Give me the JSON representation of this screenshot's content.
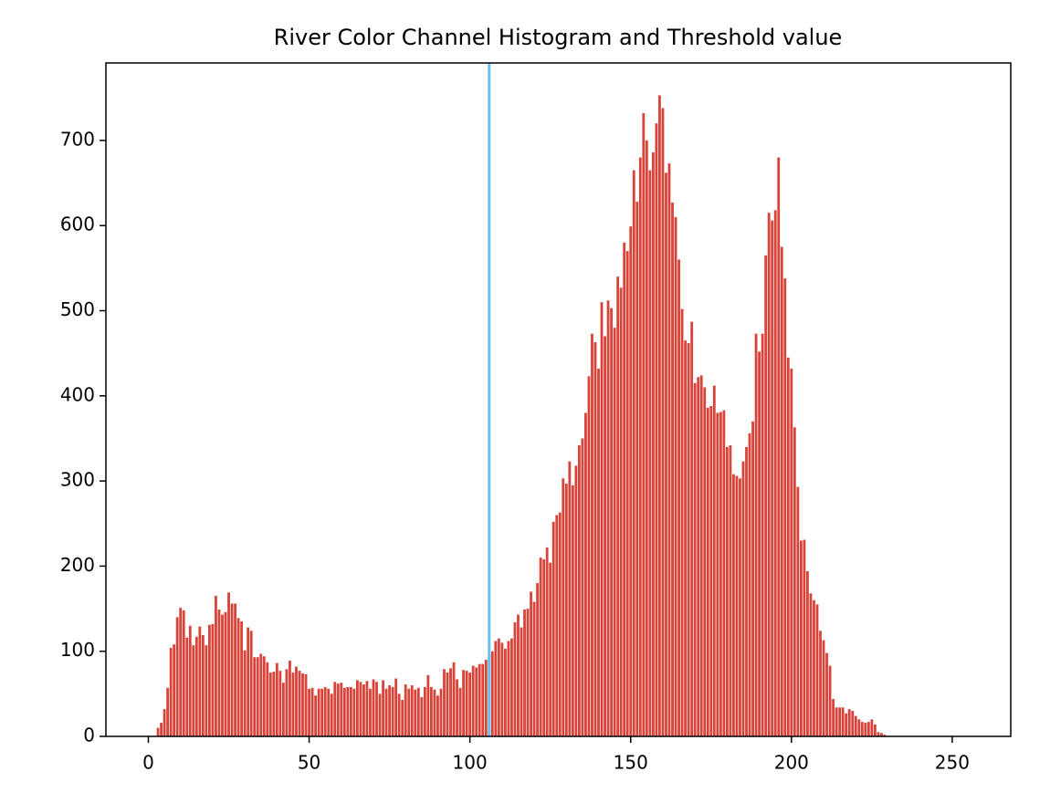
{
  "chart_data": {
    "type": "bar",
    "title": "River Color Channel Histogram and Threshold value",
    "x": [
      0,
      1,
      2,
      3,
      4,
      5,
      6,
      7,
      8,
      9,
      10,
      11,
      12,
      13,
      14,
      15,
      16,
      17,
      18,
      19,
      20,
      21,
      22,
      23,
      24,
      25,
      26,
      27,
      28,
      29,
      30,
      31,
      32,
      33,
      34,
      35,
      36,
      37,
      38,
      39,
      40,
      41,
      42,
      43,
      44,
      45,
      46,
      47,
      48,
      49,
      50,
      51,
      52,
      53,
      54,
      55,
      56,
      57,
      58,
      59,
      60,
      61,
      62,
      63,
      64,
      65,
      66,
      67,
      68,
      69,
      70,
      71,
      72,
      73,
      74,
      75,
      76,
      77,
      78,
      79,
      80,
      81,
      82,
      83,
      84,
      85,
      86,
      87,
      88,
      89,
      90,
      91,
      92,
      93,
      94,
      95,
      96,
      97,
      98,
      99,
      100,
      101,
      102,
      103,
      104,
      105,
      106,
      107,
      108,
      109,
      110,
      111,
      112,
      113,
      114,
      115,
      116,
      117,
      118,
      119,
      120,
      121,
      122,
      123,
      124,
      125,
      126,
      127,
      128,
      129,
      130,
      131,
      132,
      133,
      134,
      135,
      136,
      137,
      138,
      139,
      140,
      141,
      142,
      143,
      144,
      145,
      146,
      147,
      148,
      149,
      150,
      151,
      152,
      153,
      154,
      155,
      156,
      157,
      158,
      159,
      160,
      161,
      162,
      163,
      164,
      165,
      166,
      167,
      168,
      169,
      170,
      171,
      172,
      173,
      174,
      175,
      176,
      177,
      178,
      179,
      180,
      181,
      182,
      183,
      184,
      185,
      186,
      187,
      188,
      189,
      190,
      191,
      192,
      193,
      194,
      195,
      196,
      197,
      198,
      199,
      200,
      201,
      202,
      203,
      204,
      205,
      206,
      207,
      208,
      209,
      210,
      211,
      212,
      213,
      214,
      215,
      216,
      217,
      218,
      219,
      220,
      221,
      222,
      223,
      224,
      225,
      226,
      227,
      228,
      229,
      230,
      231,
      232,
      233,
      234,
      235,
      236,
      237,
      238,
      239,
      240,
      241,
      242,
      243,
      244,
      245,
      246,
      247,
      248,
      249,
      250,
      251,
      252,
      253,
      254,
      255
    ],
    "values": [
      0,
      0,
      0,
      10,
      16,
      32,
      57,
      104,
      108,
      140,
      151,
      148,
      116,
      130,
      107,
      117,
      129,
      119,
      107,
      131,
      132,
      165,
      149,
      143,
      146,
      169,
      156,
      156,
      139,
      135,
      101,
      128,
      124,
      93,
      93,
      97,
      94,
      87,
      75,
      76,
      86,
      77,
      63,
      79,
      89,
      75,
      82,
      77,
      74,
      73,
      56,
      57,
      48,
      56,
      56,
      58,
      56,
      50,
      64,
      62,
      63,
      57,
      58,
      58,
      56,
      66,
      64,
      61,
      65,
      56,
      67,
      64,
      50,
      66,
      56,
      60,
      58,
      68,
      50,
      43,
      61,
      56,
      60,
      55,
      57,
      46,
      58,
      72,
      58,
      55,
      48,
      56,
      79,
      75,
      80,
      87,
      67,
      57,
      78,
      77,
      75,
      83,
      81,
      85,
      85,
      90,
      97,
      100,
      112,
      115,
      110,
      103,
      112,
      115,
      134,
      143,
      128,
      149,
      150,
      170,
      158,
      180,
      210,
      208,
      222,
      204,
      252,
      260,
      263,
      303,
      297,
      323,
      295,
      318,
      342,
      350,
      380,
      423,
      473,
      463,
      432,
      510,
      470,
      512,
      503,
      480,
      540,
      527,
      580,
      570,
      599,
      665,
      628,
      680,
      732,
      700,
      665,
      686,
      720,
      753,
      738,
      662,
      673,
      627,
      610,
      560,
      502,
      465,
      462,
      487,
      415,
      422,
      424,
      410,
      386,
      388,
      412,
      380,
      381,
      383,
      340,
      342,
      308,
      306,
      303,
      323,
      340,
      356,
      370,
      473,
      452,
      473,
      565,
      615,
      606,
      618,
      680,
      575,
      538,
      445,
      432,
      363,
      293,
      230,
      231,
      194,
      168,
      160,
      155,
      124,
      113,
      98,
      83,
      44,
      34,
      34,
      34,
      27,
      32,
      30,
      24,
      20,
      17,
      16,
      17,
      20,
      14,
      5,
      4,
      2,
      0,
      0,
      0,
      0,
      0,
      0,
      0,
      0,
      0,
      0,
      0,
      0,
      0,
      0,
      0,
      0,
      0,
      0,
      0,
      0,
      0,
      0,
      0,
      0,
      0,
      0
    ],
    "color": "#d9443a",
    "threshold": 106,
    "threshold_color": "#66c2f0",
    "xlim": [
      -13.2,
      268.2
    ],
    "xticks": [
      0,
      50,
      100,
      150,
      200,
      250
    ],
    "ylim": [
      0,
      791
    ],
    "yticks": [
      0,
      100,
      200,
      300,
      400,
      500,
      600,
      700
    ]
  }
}
